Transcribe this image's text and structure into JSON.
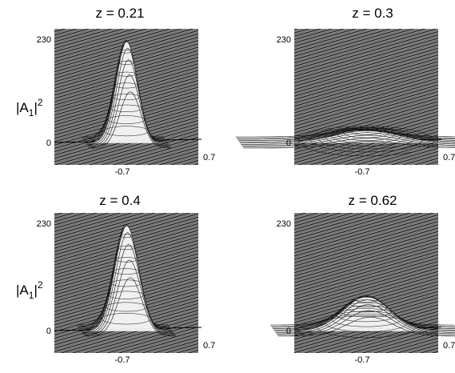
{
  "chart_data": [
    {
      "type": "surface",
      "title": "z = 0.21",
      "ylabel": "|A1|2",
      "ylim": [
        0,
        230
      ],
      "yticks": [
        "230",
        "0"
      ],
      "xticks": [
        "-0.7"
      ],
      "depth_tick": "0.7",
      "peak": 230,
      "width": 0.18
    },
    {
      "type": "surface",
      "title": "z = 0.3",
      "ylabel": "",
      "ylim": [
        0,
        230
      ],
      "yticks": [
        "230",
        "0"
      ],
      "xticks": [
        "-0.7"
      ],
      "depth_tick": "0.7",
      "peak": 28,
      "width": 0.55
    },
    {
      "type": "surface",
      "title": "z = 0.4",
      "ylabel": "|A1|2",
      "ylim": [
        0,
        230
      ],
      "yticks": [
        "230",
        "0"
      ],
      "xticks": [
        "-0.7"
      ],
      "depth_tick": "0.7",
      "peak": 230,
      "width": 0.2
    },
    {
      "type": "surface",
      "title": "z = 0.62",
      "ylabel": "",
      "ylim": [
        0,
        230
      ],
      "yticks": [
        "230",
        "0"
      ],
      "xticks": [
        "-0.7"
      ],
      "depth_tick": "0.7",
      "peak": 75,
      "width": 0.4
    }
  ]
}
